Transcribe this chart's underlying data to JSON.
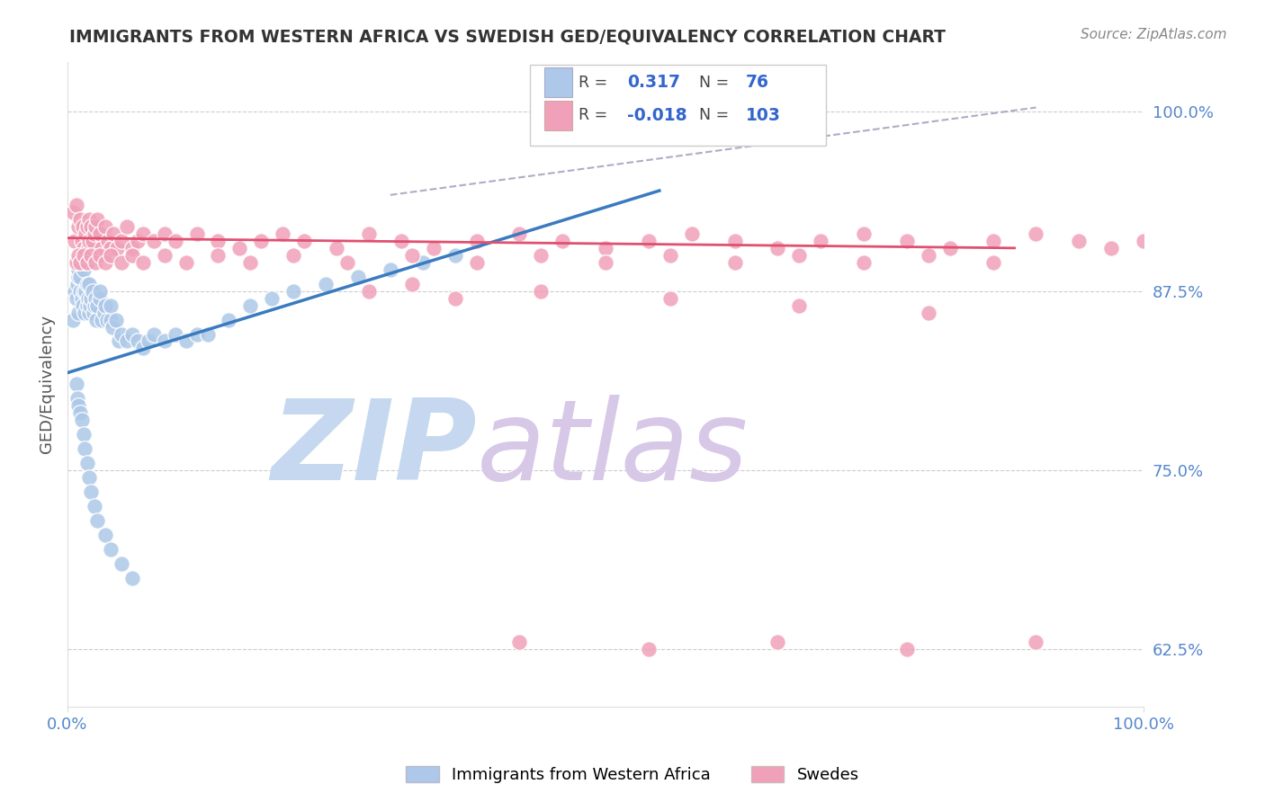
{
  "title": "IMMIGRANTS FROM WESTERN AFRICA VS SWEDISH GED/EQUIVALENCY CORRELATION CHART",
  "source": "Source: ZipAtlas.com",
  "ylabel": "GED/Equivalency",
  "yticks": [
    "62.5%",
    "75.0%",
    "87.5%",
    "100.0%"
  ],
  "ytick_vals": [
    0.625,
    0.75,
    0.875,
    1.0
  ],
  "xlim": [
    0.0,
    1.0
  ],
  "ylim": [
    0.585,
    1.035
  ],
  "legend_blue_label": "Immigrants from Western Africa",
  "legend_pink_label": "Swedes",
  "R_blue": "0.317",
  "N_blue": "76",
  "R_pink": "-0.018",
  "N_pink": "103",
  "blue_color": "#adc8e8",
  "pink_color": "#f0a0b8",
  "blue_line_color": "#3a7bbf",
  "pink_line_color": "#e05070",
  "grid_color": "#cccccc",
  "watermark_zip_color": "#c5d8ef",
  "watermark_atlas_color": "#d8c8e8",
  "background_color": "#ffffff",
  "blue_line_x0": 0.0,
  "blue_line_y0": 0.818,
  "blue_line_x1": 0.55,
  "blue_line_y1": 0.945,
  "pink_line_x0": 0.0,
  "pink_line_y0": 0.912,
  "pink_line_x1": 0.88,
  "pink_line_y1": 0.905,
  "dash_line_x0": 0.3,
  "dash_line_y0": 0.942,
  "dash_line_x1": 0.9,
  "dash_line_y1": 1.003,
  "blue_x": [
    0.005,
    0.007,
    0.008,
    0.009,
    0.01,
    0.01,
    0.01,
    0.012,
    0.012,
    0.013,
    0.014,
    0.015,
    0.015,
    0.016,
    0.017,
    0.018,
    0.018,
    0.019,
    0.02,
    0.02,
    0.021,
    0.022,
    0.023,
    0.024,
    0.025,
    0.026,
    0.027,
    0.028,
    0.03,
    0.03,
    0.032,
    0.034,
    0.035,
    0.037,
    0.04,
    0.04,
    0.042,
    0.045,
    0.048,
    0.05,
    0.055,
    0.06,
    0.065,
    0.07,
    0.075,
    0.08,
    0.09,
    0.1,
    0.11,
    0.12,
    0.13,
    0.15,
    0.17,
    0.19,
    0.21,
    0.24,
    0.27,
    0.3,
    0.33,
    0.36,
    0.008,
    0.009,
    0.01,
    0.012,
    0.013,
    0.015,
    0.016,
    0.018,
    0.02,
    0.022,
    0.025,
    0.028,
    0.035,
    0.04,
    0.05,
    0.06
  ],
  "blue_y": [
    0.855,
    0.875,
    0.87,
    0.88,
    0.86,
    0.885,
    0.89,
    0.875,
    0.885,
    0.87,
    0.865,
    0.875,
    0.89,
    0.86,
    0.875,
    0.88,
    0.865,
    0.87,
    0.86,
    0.88,
    0.865,
    0.87,
    0.875,
    0.86,
    0.865,
    0.87,
    0.855,
    0.865,
    0.87,
    0.875,
    0.855,
    0.86,
    0.865,
    0.855,
    0.855,
    0.865,
    0.85,
    0.855,
    0.84,
    0.845,
    0.84,
    0.845,
    0.84,
    0.835,
    0.84,
    0.845,
    0.84,
    0.845,
    0.84,
    0.845,
    0.845,
    0.855,
    0.865,
    0.87,
    0.875,
    0.88,
    0.885,
    0.89,
    0.895,
    0.9,
    0.81,
    0.8,
    0.795,
    0.79,
    0.785,
    0.775,
    0.765,
    0.755,
    0.745,
    0.735,
    0.725,
    0.715,
    0.705,
    0.695,
    0.685,
    0.675
  ],
  "pink_x": [
    0.005,
    0.007,
    0.008,
    0.01,
    0.01,
    0.012,
    0.013,
    0.014,
    0.015,
    0.016,
    0.017,
    0.018,
    0.019,
    0.02,
    0.02,
    0.022,
    0.023,
    0.025,
    0.026,
    0.028,
    0.03,
    0.032,
    0.035,
    0.038,
    0.04,
    0.043,
    0.046,
    0.05,
    0.055,
    0.06,
    0.065,
    0.07,
    0.08,
    0.09,
    0.1,
    0.12,
    0.14,
    0.16,
    0.18,
    0.2,
    0.22,
    0.25,
    0.28,
    0.31,
    0.34,
    0.38,
    0.42,
    0.46,
    0.5,
    0.54,
    0.58,
    0.62,
    0.66,
    0.7,
    0.74,
    0.78,
    0.82,
    0.86,
    0.9,
    0.94,
    0.97,
    1.0,
    0.008,
    0.01,
    0.012,
    0.015,
    0.018,
    0.022,
    0.026,
    0.03,
    0.035,
    0.04,
    0.05,
    0.06,
    0.07,
    0.09,
    0.11,
    0.14,
    0.17,
    0.21,
    0.26,
    0.32,
    0.38,
    0.44,
    0.5,
    0.56,
    0.62,
    0.68,
    0.74,
    0.8,
    0.86,
    0.42,
    0.54,
    0.66,
    0.78,
    0.9,
    0.32,
    0.44,
    0.56,
    0.68,
    0.8,
    0.28,
    0.36
  ],
  "pink_y": [
    0.93,
    0.91,
    0.935,
    0.92,
    0.895,
    0.925,
    0.91,
    0.92,
    0.905,
    0.895,
    0.915,
    0.92,
    0.905,
    0.91,
    0.925,
    0.92,
    0.91,
    0.915,
    0.92,
    0.925,
    0.915,
    0.905,
    0.92,
    0.91,
    0.905,
    0.915,
    0.905,
    0.91,
    0.92,
    0.905,
    0.91,
    0.915,
    0.91,
    0.915,
    0.91,
    0.915,
    0.91,
    0.905,
    0.91,
    0.915,
    0.91,
    0.905,
    0.915,
    0.91,
    0.905,
    0.91,
    0.915,
    0.91,
    0.905,
    0.91,
    0.915,
    0.91,
    0.905,
    0.91,
    0.915,
    0.91,
    0.905,
    0.91,
    0.915,
    0.91,
    0.905,
    0.91,
    0.895,
    0.9,
    0.895,
    0.9,
    0.895,
    0.9,
    0.895,
    0.9,
    0.895,
    0.9,
    0.895,
    0.9,
    0.895,
    0.9,
    0.895,
    0.9,
    0.895,
    0.9,
    0.895,
    0.9,
    0.895,
    0.9,
    0.895,
    0.9,
    0.895,
    0.9,
    0.895,
    0.9,
    0.895,
    0.63,
    0.625,
    0.63,
    0.625,
    0.63,
    0.88,
    0.875,
    0.87,
    0.865,
    0.86,
    0.875,
    0.87
  ]
}
